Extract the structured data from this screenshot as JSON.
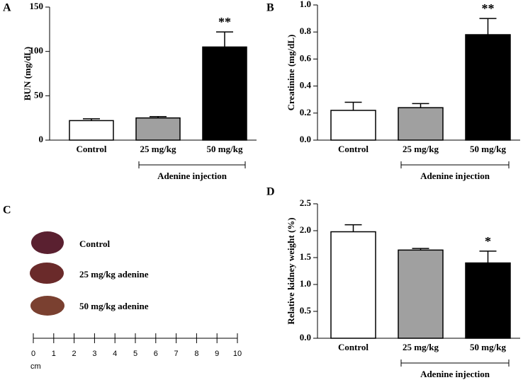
{
  "chart_data": [
    {
      "type": "bar",
      "panel": "A",
      "ylabel": "BUN (mg/dL)",
      "categories": [
        "Control",
        "25 mg/kg",
        "50 mg/kg"
      ],
      "values": [
        22,
        25,
        105
      ],
      "errors": [
        2,
        1.5,
        17
      ],
      "colors": [
        "#ffffff",
        "#a0a0a0",
        "#000000"
      ],
      "significance": [
        null,
        null,
        "**"
      ],
      "group_label": "Adenine injection",
      "ylim": [
        0,
        150
      ],
      "yticks": [
        0,
        50,
        100,
        150
      ]
    },
    {
      "type": "bar",
      "panel": "B",
      "ylabel": "Creatinine (mg/dL)",
      "categories": [
        "Control",
        "25 mg/kg",
        "50 mg/kg"
      ],
      "values": [
        0.22,
        0.24,
        0.78
      ],
      "errors": [
        0.06,
        0.03,
        0.12
      ],
      "colors": [
        "#ffffff",
        "#a0a0a0",
        "#000000"
      ],
      "significance": [
        null,
        null,
        "**"
      ],
      "group_label": "Adenine injection",
      "ylim": [
        0,
        1
      ],
      "yticks": [
        {
          "value": 0,
          "label": "0.0"
        },
        0.2,
        0.4,
        0.6,
        0.8,
        {
          "value": 1,
          "label": "1.0"
        }
      ]
    },
    {
      "type": "bar",
      "panel": "D",
      "ylabel": "Relative kidney weight (%)",
      "categories": [
        "Control",
        "25 mg/kg",
        "50 mg/kg"
      ],
      "values": [
        1.98,
        1.64,
        1.4
      ],
      "errors": [
        0.13,
        0.03,
        0.22
      ],
      "colors": [
        "#ffffff",
        "#a0a0a0",
        "#000000"
      ],
      "significance": [
        null,
        null,
        "*"
      ],
      "group_label": "Adenine injection",
      "ylim": [
        0,
        2.5
      ],
      "yticks": [
        {
          "value": 0,
          "label": "0.0"
        },
        0.5,
        {
          "value": 1,
          "label": "1.0"
        },
        1.5,
        {
          "value": 2,
          "label": "2.0"
        },
        2.5
      ]
    }
  ],
  "photo_panel": {
    "panel": "C",
    "labels": [
      "Control",
      "25 mg/kg adenine",
      "50 mg/kg adenine"
    ],
    "scale_ticks": [
      0,
      1,
      2,
      3,
      4,
      5,
      6,
      7,
      8,
      9,
      10
    ],
    "scale_unit": "cm"
  }
}
